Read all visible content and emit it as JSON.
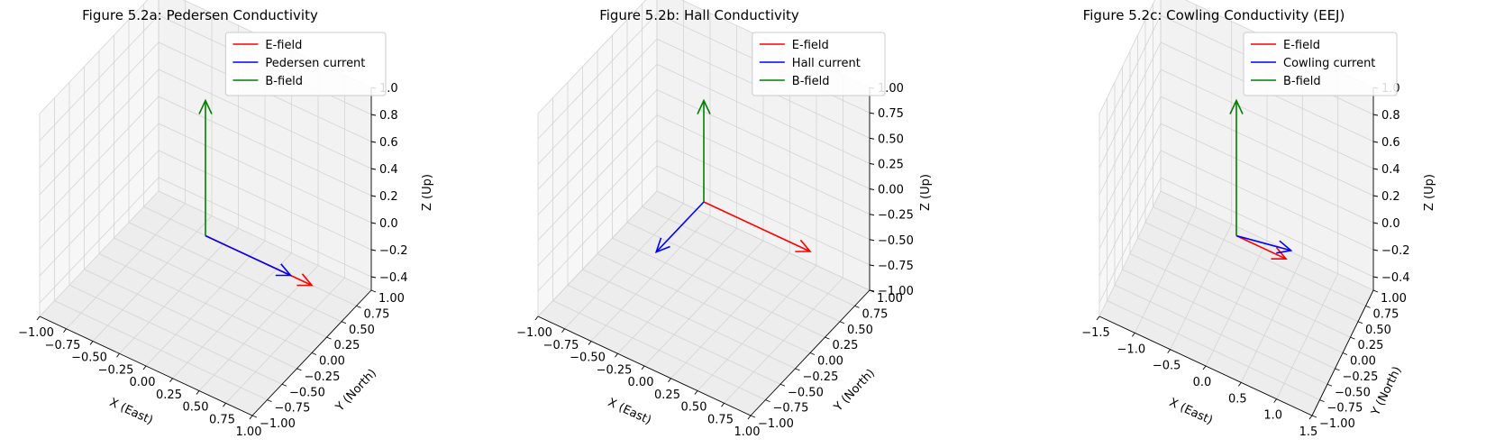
{
  "chart_data": [
    {
      "type": "line",
      "projection": "3d",
      "title": "Figure 5.2a: Pedersen Conductivity",
      "xlabel": "X (East)",
      "ylabel": "Y (North)",
      "zlabel": "Z (Up)",
      "xlim": [
        -1,
        1
      ],
      "ylim": [
        -1,
        1
      ],
      "zlim": [
        -0.5,
        1
      ],
      "xticks": [
        "−1.00",
        "−0.75",
        "−0.50",
        "−0.25",
        "0.00",
        "0.25",
        "0.50",
        "0.75",
        "1.00"
      ],
      "yticks": [
        "−1.00",
        "−0.75",
        "−0.50",
        "−0.25",
        "0.00",
        "0.25",
        "0.50",
        "0.75",
        "1.00"
      ],
      "zticks": [
        "−0.4",
        "−0.2",
        "0.0",
        "0.2",
        "0.4",
        "0.6",
        "0.8",
        "1.0"
      ],
      "grid": true,
      "legend_position": "top-right",
      "series": [
        {
          "name": "E-field",
          "color": "#ff0000",
          "from": [
            0,
            0,
            0
          ],
          "to": [
            1,
            0,
            0
          ]
        },
        {
          "name": "Pedersen current",
          "color": "#0000ff",
          "from": [
            0,
            0,
            0
          ],
          "to": [
            0.8,
            0,
            0
          ]
        },
        {
          "name": "B-field",
          "color": "#008000",
          "from": [
            0,
            0,
            0
          ],
          "to": [
            0,
            0,
            1
          ]
        }
      ]
    },
    {
      "type": "line",
      "projection": "3d",
      "title": "Figure 5.2b: Hall Conductivity",
      "xlabel": "X (East)",
      "ylabel": "Y (North)",
      "zlabel": "Z (Up)",
      "xlim": [
        -1,
        1
      ],
      "ylim": [
        -1,
        1
      ],
      "zlim": [
        -1,
        1
      ],
      "xticks": [
        "−1.00",
        "−0.75",
        "−0.50",
        "−0.25",
        "0.00",
        "0.25",
        "0.50",
        "0.75",
        "1.00"
      ],
      "yticks": [
        "−1.00",
        "−0.75",
        "−0.50",
        "−0.25",
        "0.00",
        "0.25",
        "0.50",
        "0.75",
        "1.00"
      ],
      "zticks": [
        "−1.00",
        "−0.75",
        "−0.50",
        "−0.25",
        "0.00",
        "0.25",
        "0.50",
        "0.75",
        "1.00"
      ],
      "grid": true,
      "legend_position": "top-right",
      "series": [
        {
          "name": "E-field",
          "color": "#ff0000",
          "from": [
            0,
            0,
            0
          ],
          "to": [
            1,
            0,
            0
          ]
        },
        {
          "name": "Hall current",
          "color": "#0000ff",
          "from": [
            0,
            0,
            0
          ],
          "to": [
            0,
            -0.8,
            0
          ]
        },
        {
          "name": "B-field",
          "color": "#008000",
          "from": [
            0,
            0,
            0
          ],
          "to": [
            0,
            0,
            1
          ]
        }
      ]
    },
    {
      "type": "line",
      "projection": "3d",
      "title": "Figure 5.2c: Cowling Conductivity (EEJ)",
      "xlabel": "X (East)",
      "ylabel": "Y (North)",
      "zlabel": "Z (Up)",
      "xlim": [
        -1.5,
        1.5
      ],
      "ylim": [
        -1,
        1
      ],
      "zlim": [
        -0.5,
        1
      ],
      "xticks": [
        "−1.5",
        "−1.0",
        "−0.5",
        "0.0",
        "0.5",
        "1.0",
        "1.5"
      ],
      "yticks": [
        "−1.00",
        "−0.75",
        "−0.50",
        "−0.25",
        "0.00",
        "0.25",
        "0.50",
        "0.75",
        "1.00"
      ],
      "zticks": [
        "−0.4",
        "−0.2",
        "0.0",
        "0.2",
        "0.4",
        "0.6",
        "0.8",
        "1.0"
      ],
      "grid": true,
      "legend_position": "top-right",
      "series": [
        {
          "name": "E-field",
          "color": "#ff0000",
          "from": [
            0,
            0,
            0
          ],
          "to": [
            0.7,
            0,
            0
          ]
        },
        {
          "name": "Cowling current",
          "color": "#0000ff",
          "from": [
            0,
            0,
            0
          ],
          "to": [
            0.9,
            -0.3,
            0.25
          ]
        },
        {
          "name": "B-field",
          "color": "#008000",
          "from": [
            0,
            0,
            0
          ],
          "to": [
            0,
            0,
            1
          ]
        }
      ]
    }
  ]
}
